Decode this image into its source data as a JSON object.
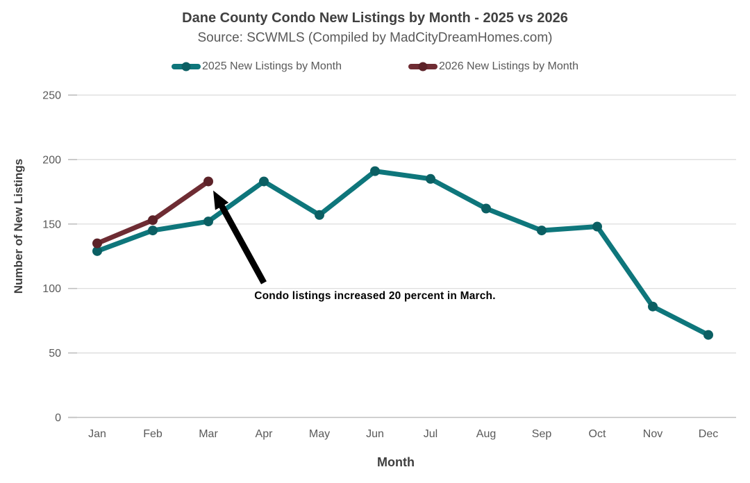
{
  "chart_data": {
    "type": "line",
    "title": "Dane County Condo New Listings by Month - 2025 vs 2026",
    "subtitle": "Source: SCWMLS (Compiled by MadCityDreamHomes.com)",
    "xlabel": "Month",
    "ylabel": "Number of New Listings",
    "categories": [
      "Jan",
      "Feb",
      "Mar",
      "Apr",
      "May",
      "Jun",
      "Jul",
      "Aug",
      "Sep",
      "Oct",
      "Nov",
      "Dec"
    ],
    "series": [
      {
        "name": "2025 New Listings by Month",
        "color": "#0E767B",
        "dot_color": "#0B5F63",
        "values": [
          129,
          145,
          152,
          183,
          157,
          191,
          185,
          162,
          145,
          148,
          86,
          64
        ]
      },
      {
        "name": "2026 New Listings by Month",
        "color": "#6E2C33",
        "dot_color": "#5C2228",
        "values": [
          135,
          153,
          183
        ]
      }
    ],
    "ylim": [
      0,
      250
    ],
    "yticks": [
      0,
      50,
      100,
      150,
      200,
      250
    ],
    "grid": true,
    "legend_position": "top",
    "annotation": {
      "text": "Condo listings increased 20 percent in March.",
      "points_to": {
        "series": 1,
        "index": 2
      },
      "arrow_color": "#000000"
    },
    "colors": {
      "gridline": "#D9D9D9",
      "axis_line": "#BFBFBF",
      "tick_text": "#595959",
      "title_text": "#404040"
    }
  }
}
